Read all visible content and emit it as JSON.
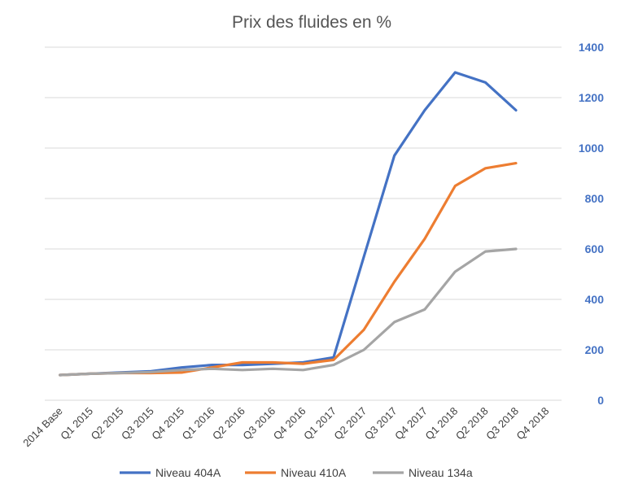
{
  "chart_data": {
    "type": "line",
    "title": "Prix des fluides en %",
    "categories": [
      "2014 Base",
      "Q1 2015",
      "Q2 2015",
      "Q3 2015",
      "Q4 2015",
      "Q1 2016",
      "Q2 2016",
      "Q3 2016",
      "Q4 2016",
      "Q1 2017",
      "Q2 2017",
      "Q3 2017",
      "Q4 2017",
      "Q1 2018",
      "Q2 2018",
      "Q3 2018",
      "Q4 2018"
    ],
    "series": [
      {
        "name": "Niveau 404A",
        "color": "#4472C4",
        "values": [
          100,
          105,
          110,
          115,
          130,
          140,
          140,
          145,
          150,
          170,
          570,
          970,
          1150,
          1300,
          1260,
          1150,
          null
        ]
      },
      {
        "name": "Niveau 410A",
        "color": "#ED7D31",
        "values": [
          100,
          105,
          108,
          108,
          110,
          130,
          150,
          150,
          145,
          160,
          280,
          470,
          640,
          850,
          920,
          940,
          null
        ]
      },
      {
        "name": "Niveau 134a",
        "color": "#A5A5A5",
        "values": [
          100,
          105,
          108,
          112,
          120,
          125,
          120,
          125,
          120,
          140,
          200,
          310,
          360,
          510,
          590,
          600,
          null
        ]
      }
    ],
    "yticks": [
      0,
      200,
      400,
      600,
      800,
      1000,
      1200,
      1400
    ],
    "ylim": [
      0,
      1400
    ],
    "axis_position": "right",
    "grid": true,
    "legend_position": "bottom",
    "xlabel": "",
    "ylabel": ""
  }
}
